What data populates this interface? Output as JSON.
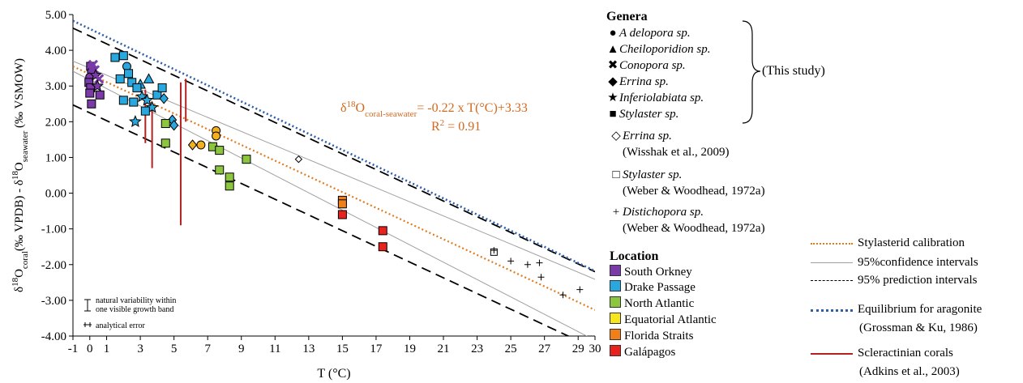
{
  "chart_data": {
    "type": "scatter",
    "xlabel": "T (°C)",
    "ylabel_parts": [
      "δ",
      "18",
      "O",
      "coral",
      "(‰ VPDB) - δ",
      "18",
      "O",
      "seawater",
      " (‰ VSMOW)"
    ],
    "xlim": [
      -1,
      30
    ],
    "ylim": [
      -4,
      5
    ],
    "x_ticks": [
      -1,
      0,
      1,
      3,
      5,
      7,
      9,
      11,
      13,
      15,
      17,
      19,
      21,
      23,
      25,
      27,
      29,
      30
    ],
    "y_ticks": [
      -4,
      -3,
      -2,
      -1,
      0,
      1,
      2,
      3,
      4,
      5
    ],
    "equation_parts": [
      "δ",
      "18",
      "O",
      "coral-seawater",
      "= -0.22 x T(°C)+3.33"
    ],
    "r2_parts": [
      "R",
      "2",
      " = 0.91"
    ],
    "lines": [
      {
        "key": "calibration",
        "slope": -0.22,
        "intercept": 3.33,
        "color": "#e07b1f",
        "style": "dotted"
      },
      {
        "key": "ci_upper",
        "slope": -0.197,
        "intercept": 3.5,
        "color": "#a0a0a0",
        "style": "solid"
      },
      {
        "key": "ci_lower",
        "slope": -0.243,
        "intercept": 3.17,
        "color": "#a0a0a0",
        "style": "solid"
      },
      {
        "key": "pi_upper",
        "slope": -0.22,
        "intercept": 4.4,
        "color": "#000000",
        "style": "dashed"
      },
      {
        "key": "pi_lower",
        "slope": -0.22,
        "intercept": 2.25,
        "color": "#000000",
        "style": "dashed"
      },
      {
        "key": "equilibrium",
        "slope": -0.226,
        "intercept": 4.6,
        "color": "#2e5ea8",
        "style": "dotted"
      }
    ],
    "scleractinian_bars": [
      {
        "x": 3.3,
        "y1": 1.4,
        "y2": 2.9
      },
      {
        "x": 3.7,
        "y1": 0.7,
        "y2": 2.5
      },
      {
        "x": 5.4,
        "y1": -0.9,
        "y2": 3.1
      },
      {
        "x": 5.7,
        "y1": 2.0,
        "y2": 3.2
      }
    ],
    "points": [
      {
        "x": 0.05,
        "y": 3.55,
        "shape": "square",
        "color": "#7a3aa8"
      },
      {
        "x": 0.1,
        "y": 3.4,
        "shape": "circle",
        "color": "#7a3aa8"
      },
      {
        "x": 0.0,
        "y": 3.25,
        "shape": "circle",
        "color": "#7a3aa8"
      },
      {
        "x": -0.05,
        "y": 3.1,
        "shape": "square",
        "color": "#7a3aa8"
      },
      {
        "x": 0.05,
        "y": 2.95,
        "shape": "square",
        "color": "#7a3aa8"
      },
      {
        "x": 0.0,
        "y": 2.8,
        "shape": "square",
        "color": "#7a3aa8"
      },
      {
        "x": 0.1,
        "y": 2.5,
        "shape": "square",
        "color": "#7a3aa8"
      },
      {
        "x": 0.2,
        "y": 3.6,
        "shape": "cross",
        "color": "#7a3aa8"
      },
      {
        "x": 0.3,
        "y": 3.45,
        "shape": "cross",
        "color": "#7a3aa8"
      },
      {
        "x": 0.35,
        "y": 3.3,
        "shape": "star",
        "color": "#7a3aa8"
      },
      {
        "x": 0.55,
        "y": 3.2,
        "shape": "cross",
        "color": "#7a3aa8"
      },
      {
        "x": 0.45,
        "y": 3.0,
        "shape": "star",
        "color": "#7a3aa8"
      },
      {
        "x": 0.6,
        "y": 2.75,
        "shape": "square",
        "color": "#7a3aa8"
      },
      {
        "x": 1.5,
        "y": 3.8,
        "shape": "square",
        "color": "#29a8e0"
      },
      {
        "x": 2.0,
        "y": 3.85,
        "shape": "square",
        "color": "#29a8e0"
      },
      {
        "x": 2.2,
        "y": 3.55,
        "shape": "circle",
        "color": "#29a8e0"
      },
      {
        "x": 2.3,
        "y": 3.35,
        "shape": "square",
        "color": "#29a8e0"
      },
      {
        "x": 1.8,
        "y": 3.2,
        "shape": "square",
        "color": "#29a8e0"
      },
      {
        "x": 2.5,
        "y": 3.1,
        "shape": "square",
        "color": "#29a8e0"
      },
      {
        "x": 3.0,
        "y": 3.05,
        "shape": "triangle",
        "color": "#29a8e0"
      },
      {
        "x": 3.5,
        "y": 3.2,
        "shape": "triangle",
        "color": "#29a8e0"
      },
      {
        "x": 2.8,
        "y": 2.95,
        "shape": "square",
        "color": "#29a8e0"
      },
      {
        "x": 2.0,
        "y": 2.6,
        "shape": "square",
        "color": "#29a8e0"
      },
      {
        "x": 2.6,
        "y": 2.55,
        "shape": "square",
        "color": "#29a8e0"
      },
      {
        "x": 3.1,
        "y": 2.7,
        "shape": "star",
        "color": "#29a8e0"
      },
      {
        "x": 3.4,
        "y": 2.6,
        "shape": "star",
        "color": "#29a8e0"
      },
      {
        "x": 3.7,
        "y": 2.4,
        "shape": "star",
        "color": "#29a8e0"
      },
      {
        "x": 4.0,
        "y": 2.75,
        "shape": "square",
        "color": "#29a8e0"
      },
      {
        "x": 4.3,
        "y": 2.95,
        "shape": "square",
        "color": "#29a8e0"
      },
      {
        "x": 4.4,
        "y": 2.65,
        "shape": "diamond",
        "color": "#29a8e0"
      },
      {
        "x": 3.3,
        "y": 2.3,
        "shape": "square",
        "color": "#29a8e0"
      },
      {
        "x": 2.7,
        "y": 2.0,
        "shape": "star",
        "color": "#29a8e0"
      },
      {
        "x": 4.9,
        "y": 2.05,
        "shape": "diamond",
        "color": "#29a8e0"
      },
      {
        "x": 5.0,
        "y": 1.9,
        "shape": "diamond",
        "color": "#29a8e0"
      },
      {
        "x": 4.5,
        "y": 1.95,
        "shape": "square",
        "color": "#8cc63f"
      },
      {
        "x": 4.5,
        "y": 1.4,
        "shape": "square",
        "color": "#8cc63f"
      },
      {
        "x": 7.3,
        "y": 1.3,
        "shape": "square",
        "color": "#8cc63f"
      },
      {
        "x": 7.7,
        "y": 1.2,
        "shape": "square",
        "color": "#8cc63f"
      },
      {
        "x": 9.3,
        "y": 0.95,
        "shape": "square",
        "color": "#8cc63f"
      },
      {
        "x": 7.7,
        "y": 0.65,
        "shape": "square",
        "color": "#8cc63f"
      },
      {
        "x": 8.3,
        "y": 0.45,
        "shape": "square",
        "color": "#8cc63f"
      },
      {
        "x": 8.3,
        "y": 0.2,
        "shape": "square",
        "color": "#8cc63f"
      },
      {
        "x": 7.5,
        "y": 1.75,
        "shape": "circle",
        "color": "#f2b01e"
      },
      {
        "x": 7.5,
        "y": 1.6,
        "shape": "circle",
        "color": "#f2b01e"
      },
      {
        "x": 6.6,
        "y": 1.35,
        "shape": "circle",
        "color": "#f2b01e"
      },
      {
        "x": 6.1,
        "y": 1.35,
        "shape": "diamond",
        "color": "#f2b01e"
      },
      {
        "x": 15.0,
        "y": -0.2,
        "shape": "square",
        "color": "#f07f1a"
      },
      {
        "x": 15.0,
        "y": -0.3,
        "shape": "square",
        "color": "#f07f1a"
      },
      {
        "x": 15.0,
        "y": -0.6,
        "shape": "square",
        "color": "#e8221c"
      },
      {
        "x": 17.4,
        "y": -1.05,
        "shape": "square",
        "color": "#e8221c"
      },
      {
        "x": 17.4,
        "y": -1.5,
        "shape": "square",
        "color": "#e8221c"
      }
    ],
    "lit_errina": [
      {
        "x": 12.4,
        "y": 0.95
      }
    ],
    "lit_stylaster": [
      {
        "x": 24.0,
        "y": -1.65
      }
    ],
    "lit_distichopora": [
      {
        "x": 24.0,
        "y": -1.6
      },
      {
        "x": 25.0,
        "y": -1.9
      },
      {
        "x": 26.0,
        "y": -2.0
      },
      {
        "x": 26.7,
        "y": -1.95
      },
      {
        "x": 26.8,
        "y": -2.35
      },
      {
        "x": 28.1,
        "y": -2.85
      },
      {
        "x": 29.1,
        "y": -2.7
      }
    ],
    "inset": {
      "natural_variability": "natural variability within one visible growth band",
      "analytical_error": "analytical error"
    }
  },
  "legend": {
    "genera_title": "Genera",
    "genera": [
      {
        "symbol": "●",
        "name": "A delopora sp."
      },
      {
        "symbol": "▲",
        "name": "Cheiloporidion sp."
      },
      {
        "symbol": "✖",
        "name": "Conopora sp."
      },
      {
        "symbol": "◆",
        "name": "Errina sp."
      },
      {
        "symbol": "★",
        "name": "Inferiolabiata sp."
      },
      {
        "symbol": "■",
        "name": "Stylaster sp."
      }
    ],
    "this_study": "(This study)",
    "lit": [
      {
        "symbol": "◇",
        "name": "Errina sp.",
        "ref": "(Wisshak et al., 2009)"
      },
      {
        "symbol": "□",
        "name": "Stylaster sp.",
        "ref": "(Weber & Woodhead, 1972a)"
      },
      {
        "symbol": "+",
        "name": "Distichopora sp.",
        "ref": "(Weber & Woodhead, 1972a)"
      }
    ],
    "location_title": "Location",
    "locations": [
      {
        "name": "South Orkney",
        "color": "#7a3aa8"
      },
      {
        "name": "Drake Passage",
        "color": "#29a8e0"
      },
      {
        "name": "North Atlantic",
        "color": "#8cc63f"
      },
      {
        "name": "Equatorial Atlantic",
        "color": "#f5e61e"
      },
      {
        "name": "Florida Straits",
        "color": "#f07f1a"
      },
      {
        "name": "Galápagos",
        "color": "#e8221c"
      }
    ],
    "lines": [
      {
        "label": "Stylasterid calibration"
      },
      {
        "label": "95%confidence intervals"
      },
      {
        "label": "95% prediction intervals"
      },
      {
        "label": "Equilibrium for aragonite",
        "ref": "(Grossman & Ku, 1986)"
      },
      {
        "label": "Scleractinian corals",
        "ref": "(Adkins et al., 2003)"
      }
    ]
  }
}
